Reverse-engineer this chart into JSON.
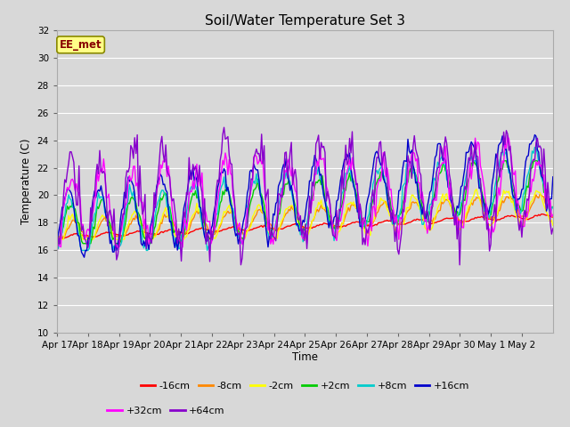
{
  "title": "Soil/Water Temperature Set 3",
  "ylabel": "Temperature (C)",
  "xlabel": "Time",
  "ylim": [
    10,
    32
  ],
  "yticks": [
    10,
    12,
    14,
    16,
    18,
    20,
    22,
    24,
    26,
    28,
    30,
    32
  ],
  "xtick_labels": [
    "Apr 17",
    "Apr 18",
    "Apr 19",
    "Apr 20",
    "Apr 21",
    "Apr 22",
    "Apr 23",
    "Apr 24",
    "Apr 25",
    "Apr 26",
    "Apr 27",
    "Apr 28",
    "Apr 29",
    "Apr 30",
    "May 1",
    "May 2"
  ],
  "background_color": "#d8d8d8",
  "plot_bg_color": "#d8d8d8",
  "grid_color": "#ffffff",
  "series": [
    {
      "label": "-16cm",
      "color": "#ff0000"
    },
    {
      "label": "-8cm",
      "color": "#ff8800"
    },
    {
      "label": "-2cm",
      "color": "#ffff00"
    },
    {
      "label": "+2cm",
      "color": "#00cc00"
    },
    {
      "label": "+8cm",
      "color": "#00cccc"
    },
    {
      "label": "+16cm",
      "color": "#0000cc"
    },
    {
      "label": "+32cm",
      "color": "#ff00ff"
    },
    {
      "label": "+64cm",
      "color": "#8800cc"
    }
  ],
  "watermark_text": "EE_met",
  "watermark_bg": "#ffff88",
  "watermark_border": "#888800",
  "watermark_text_color": "#880000",
  "figwidth": 6.4,
  "figheight": 4.8,
  "dpi": 100
}
